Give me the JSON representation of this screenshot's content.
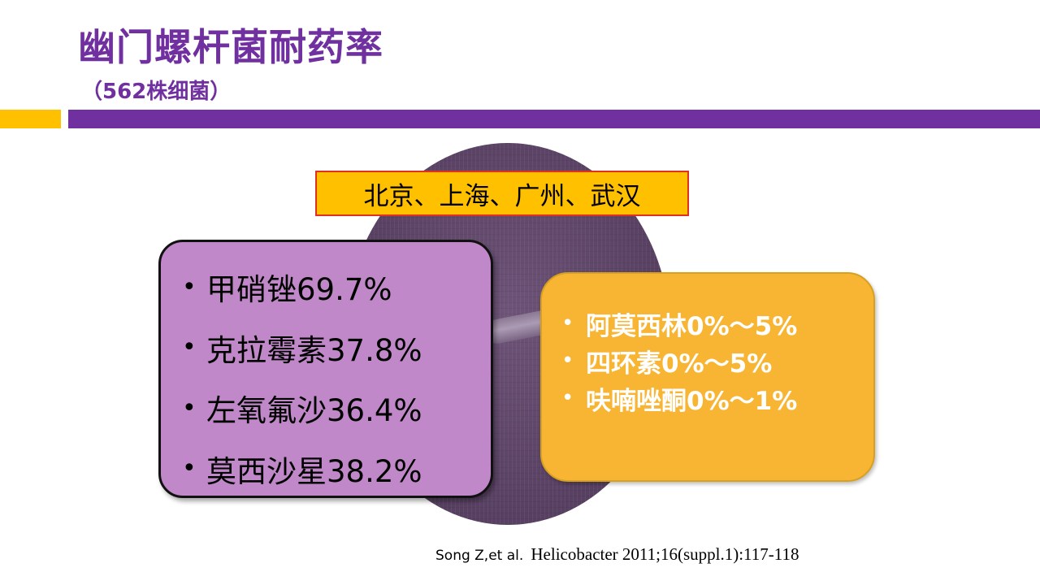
{
  "slide": {
    "title": "幽门螺杆菌耐药率",
    "subtitle": "（562株细菌）",
    "cities": "北京、上海、广州、武汉",
    "bullet": "•",
    "high_resistance": [
      "甲硝锉69.7%",
      "克拉霉素37.8%",
      "左氧氟沙36.4%",
      "莫西沙星38.2%"
    ],
    "low_resistance": [
      "阿莫西林0%～5%",
      "四环素0%～5%",
      "呋喃唑酮0%～1%"
    ],
    "citation": {
      "authors": "Song Z,et al.",
      "journal": "Helicobacter 2011;16(suppl.1):117-118"
    }
  },
  "colors": {
    "title": "#7030a0",
    "purple_bar": "#7030a0",
    "gold_bar": "#ffc000",
    "location_box": "#ffc000",
    "location_border": "#e03020",
    "left_box": "#c088c8",
    "right_box": "#f8b533",
    "right_text": "#ffffff"
  }
}
